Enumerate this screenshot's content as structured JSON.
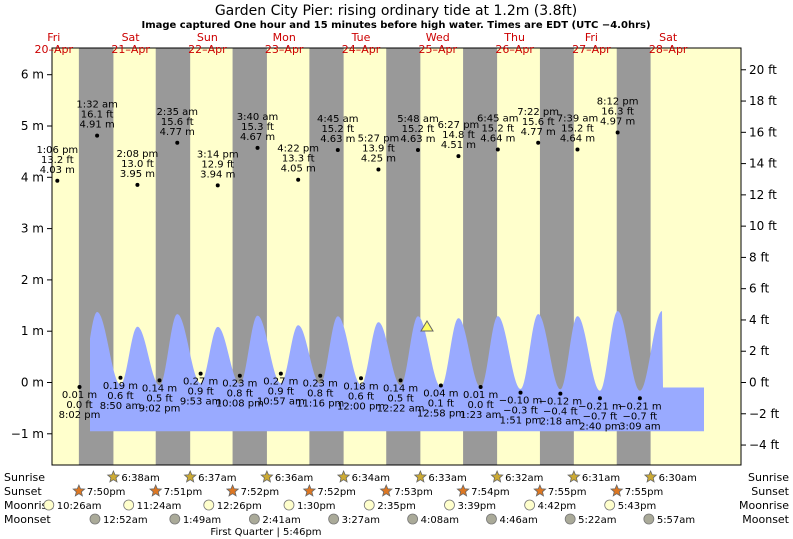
{
  "chart_data": {
    "type": "area",
    "title": "Garden City Pier: rising  ordinary tide at 1.2m (3.8ft)",
    "subtitle": "Image captured One hour and 15 minutes before high water. Times are EDT (UTC −4.0hrs)",
    "y_left": {
      "ticks": [
        "6 m",
        "5 m",
        "4 m",
        "3 m",
        "2 m",
        "1 m",
        "0 m",
        "−1 m"
      ],
      "values": [
        6,
        5,
        4,
        3,
        2,
        1,
        0,
        -1
      ],
      "range": [
        -1.6,
        6.4
      ]
    },
    "y_right": {
      "ticks": [
        "20 ft",
        "18 ft",
        "16 ft",
        "14 ft",
        "12 ft",
        "10 ft",
        "8 ft",
        "6 ft",
        "4 ft",
        "2 ft",
        "0 ft",
        "−2 ft",
        "−4 ft"
      ],
      "values": [
        20,
        18,
        16,
        14,
        12,
        10,
        8,
        6,
        4,
        2,
        0,
        -2,
        -4
      ]
    },
    "days": [
      {
        "name": "Fri",
        "date": "20–Apr"
      },
      {
        "name": "Sat",
        "date": "21–Apr"
      },
      {
        "name": "Sun",
        "date": "22–Apr"
      },
      {
        "name": "Mon",
        "date": "23–Apr"
      },
      {
        "name": "Tue",
        "date": "24–Apr"
      },
      {
        "name": "Wed",
        "date": "25–Apr"
      },
      {
        "name": "Thu",
        "date": "26–Apr"
      },
      {
        "name": "Fri",
        "date": "27–Apr"
      },
      {
        "name": "Sat",
        "date": "28–Apr"
      }
    ],
    "current_level_m": 1.2,
    "tides": [
      {
        "type": "high",
        "day": 0,
        "time": "1:06 pm",
        "ft": "13.2 ft",
        "m": "4.03 m",
        "height": 4.03
      },
      {
        "type": "low",
        "day": 0,
        "time": "8:02 pm",
        "ft": "0.0 ft",
        "m": "0.01 m",
        "height": 0.01
      },
      {
        "type": "high",
        "day": 1,
        "time": "1:32 am",
        "ft": "16.1 ft",
        "m": "4.91 m",
        "height": 4.91
      },
      {
        "type": "low",
        "day": 1,
        "time": "8:50 am",
        "ft": "0.6 ft",
        "m": "0.19 m",
        "height": 0.19
      },
      {
        "type": "high",
        "day": 1,
        "time": "2:08 pm",
        "ft": "13.0 ft",
        "m": "3.95 m",
        "height": 3.95
      },
      {
        "type": "low",
        "day": 1,
        "time": "9:02 pm",
        "ft": "0.5 ft",
        "m": "0.14 m",
        "height": 0.14
      },
      {
        "type": "high",
        "day": 2,
        "time": "2:35 am",
        "ft": "15.6 ft",
        "m": "4.77 m",
        "height": 4.77
      },
      {
        "type": "low",
        "day": 2,
        "time": "9:53 am",
        "ft": "0.9 ft",
        "m": "0.27 m",
        "height": 0.27
      },
      {
        "type": "high",
        "day": 2,
        "time": "3:14 pm",
        "ft": "12.9 ft",
        "m": "3.94 m",
        "height": 3.94
      },
      {
        "type": "low",
        "day": 2,
        "time": "10:08 pm",
        "ft": "0.8 ft",
        "m": "0.23 m",
        "height": 0.23
      },
      {
        "type": "high",
        "day": 3,
        "time": "3:40 am",
        "ft": "15.3 ft",
        "m": "4.67 m",
        "height": 4.67
      },
      {
        "type": "low",
        "day": 3,
        "time": "10:57 am",
        "ft": "0.9 ft",
        "m": "0.27 m",
        "height": 0.27
      },
      {
        "type": "high",
        "day": 3,
        "time": "4:22 pm",
        "ft": "13.3 ft",
        "m": "4.05 m",
        "height": 4.05
      },
      {
        "type": "low",
        "day": 3,
        "time": "11:16 pm",
        "ft": "0.8 ft",
        "m": "0.23 m",
        "height": 0.23
      },
      {
        "type": "high",
        "day": 4,
        "time": "4:45 am",
        "ft": "15.2 ft",
        "m": "4.63 m",
        "height": 4.63
      },
      {
        "type": "low",
        "day": 4,
        "time": "12:00 pm",
        "ft": "0.6 ft",
        "m": "0.18 m",
        "height": 0.18
      },
      {
        "type": "high",
        "day": 4,
        "time": "5:27 pm",
        "ft": "13.9 ft",
        "m": "4.25 m",
        "height": 4.25
      },
      {
        "type": "low",
        "day": 5,
        "time": "12:22 am",
        "ft": "0.5 ft",
        "m": "0.14 m",
        "height": 0.14
      },
      {
        "type": "high",
        "day": 5,
        "time": "5:48 am",
        "ft": "15.2 ft",
        "m": "4.63 m",
        "height": 4.63
      },
      {
        "type": "low",
        "day": 5,
        "time": "12:58 pm",
        "ft": "0.1 ft",
        "m": "0.04 m",
        "height": 0.04
      },
      {
        "type": "high",
        "day": 5,
        "time": "6:27 pm",
        "ft": "14.8 ft",
        "m": "4.51 m",
        "height": 4.51
      },
      {
        "type": "low",
        "day": 6,
        "time": "1:23 am",
        "ft": "0.0 ft",
        "m": "0.01 m",
        "height": 0.01
      },
      {
        "type": "high",
        "day": 6,
        "time": "6:45 am",
        "ft": "15.2 ft",
        "m": "4.64 m",
        "height": 4.64
      },
      {
        "type": "low",
        "day": 6,
        "time": "1:51 pm",
        "ft": "−0.3 ft",
        "m": "−0.10 m",
        "height": -0.1
      },
      {
        "type": "high",
        "day": 6,
        "time": "7:22 pm",
        "ft": "15.6 ft",
        "m": "4.77 m",
        "height": 4.77
      },
      {
        "type": "low",
        "day": 7,
        "time": "2:18 am",
        "ft": "−0.4 ft",
        "m": "−0.12 m",
        "height": -0.12
      },
      {
        "type": "high",
        "day": 7,
        "time": "7:39 am",
        "ft": "15.2 ft",
        "m": "4.64 m",
        "height": 4.64
      },
      {
        "type": "low",
        "day": 7,
        "time": "2:40 pm",
        "ft": "−0.7 ft",
        "m": "−0.21 m",
        "height": -0.21
      },
      {
        "type": "high",
        "day": 7,
        "time": "8:12 pm",
        "ft": "16.3 ft",
        "m": "4.97 m",
        "height": 4.97
      },
      {
        "type": "low",
        "day": 8,
        "time": "3:09 am",
        "ft": "−0.7 ft",
        "m": "−0.21 m",
        "height": -0.21
      }
    ],
    "row_labels": {
      "sunrise": "Sunrise",
      "sunset": "Sunset",
      "moonrise": "Moonrise",
      "moonset": "Moonset"
    },
    "sunrise": [
      "6:38am",
      "6:37am",
      "6:36am",
      "6:34am",
      "6:33am",
      "6:32am",
      "6:31am",
      "6:30am"
    ],
    "sunset": [
      "7:50pm",
      "7:51pm",
      "7:52pm",
      "7:52pm",
      "7:53pm",
      "7:54pm",
      "7:55pm",
      "7:55pm"
    ],
    "moonrise": [
      "10:26am",
      "11:24am",
      "12:26pm",
      "1:30pm",
      "2:35pm",
      "3:39pm",
      "4:42pm",
      "5:43pm"
    ],
    "moonset": [
      "12:52am",
      "1:49am",
      "2:41am",
      "3:27am",
      "4:08am",
      "4:46am",
      "5:22am",
      "5:57am"
    ],
    "moon_phase": "First Quarter | 5:46pm",
    "colors": {
      "day": "#ffffcc",
      "night": "#999999",
      "water": "#99aaff",
      "text_red": "#cc0000",
      "sun_star": "#ccaa33",
      "sunset_star": "#dd7722",
      "moon_fill": "#ffffcc",
      "moonset_fill": "#aaaa99"
    }
  }
}
